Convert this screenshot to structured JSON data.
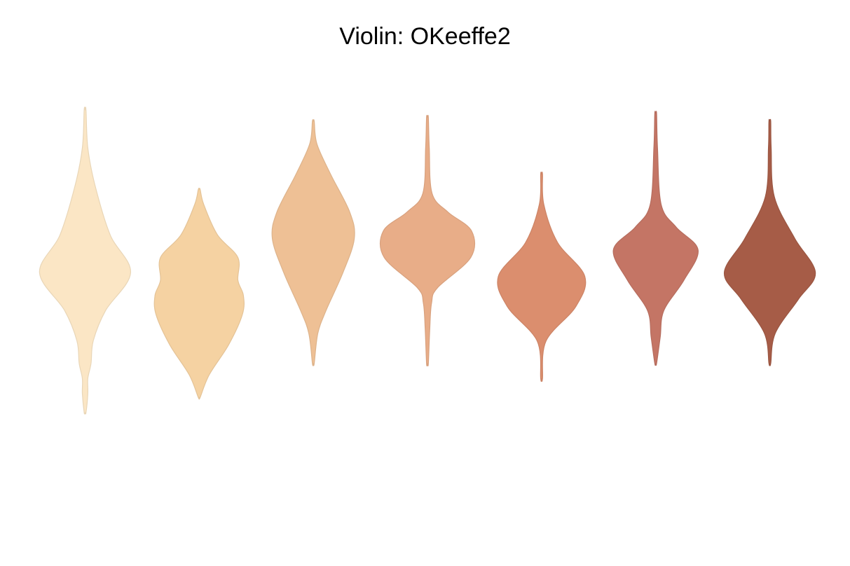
{
  "chart_data": {
    "type": "violin",
    "title": "Violin: OKeeffe2",
    "xlabel": "",
    "ylabel": "",
    "axes_visible": false,
    "grid": false,
    "legend": "none",
    "ylim": [
      0,
      100
    ],
    "series": [
      {
        "color": "#fbe6c5",
        "profile": [
          [
            15,
            0.02
          ],
          [
            20,
            0.06
          ],
          [
            24,
            0.06
          ],
          [
            28,
            0.13
          ],
          [
            34,
            0.18
          ],
          [
            42,
            0.45
          ],
          [
            52,
            1.0
          ],
          [
            62,
            0.55
          ],
          [
            75,
            0.22
          ],
          [
            85,
            0.06
          ],
          [
            95,
            0.02
          ]
        ]
      },
      {
        "color": "#f5d2a2",
        "profile": [
          [
            19,
            0.02
          ],
          [
            25,
            0.22
          ],
          [
            33,
            0.65
          ],
          [
            41,
            0.95
          ],
          [
            46,
            0.97
          ],
          [
            50,
            0.85
          ],
          [
            56,
            0.85
          ],
          [
            62,
            0.4
          ],
          [
            70,
            0.1
          ],
          [
            74,
            0.02
          ]
        ]
      },
      {
        "color": "#eec095",
        "profile": [
          [
            28,
            0.02
          ],
          [
            36,
            0.1
          ],
          [
            42,
            0.28
          ],
          [
            52,
            0.65
          ],
          [
            61,
            0.9
          ],
          [
            68,
            0.8
          ],
          [
            78,
            0.38
          ],
          [
            86,
            0.08
          ],
          [
            92,
            0.02
          ]
        ]
      },
      {
        "color": "#e8ad88",
        "profile": [
          [
            28,
            0.02
          ],
          [
            37,
            0.05
          ],
          [
            44,
            0.09
          ],
          [
            48,
            0.22
          ],
          [
            56,
            0.95
          ],
          [
            63,
            0.97
          ],
          [
            68,
            0.45
          ],
          [
            73,
            0.1
          ],
          [
            85,
            0.04
          ],
          [
            93,
            0.02
          ]
        ]
      },
      {
        "color": "#db8e6e",
        "profile": [
          [
            24,
            0.02
          ],
          [
            34,
            0.1
          ],
          [
            43,
            0.75
          ],
          [
            51,
            0.95
          ],
          [
            60,
            0.35
          ],
          [
            70,
            0.05
          ],
          [
            78,
            0.02
          ]
        ]
      },
      {
        "color": "#c47565",
        "profile": [
          [
            28,
            0.02
          ],
          [
            35,
            0.1
          ],
          [
            42,
            0.18
          ],
          [
            50,
            0.62
          ],
          [
            58,
            0.93
          ],
          [
            64,
            0.45
          ],
          [
            70,
            0.12
          ],
          [
            85,
            0.04
          ],
          [
            94,
            0.02
          ]
        ]
      },
      {
        "color": "#a65c47",
        "profile": [
          [
            28,
            0.02
          ],
          [
            36,
            0.12
          ],
          [
            45,
            0.63
          ],
          [
            52,
            1.0
          ],
          [
            61,
            0.55
          ],
          [
            72,
            0.1
          ],
          [
            85,
            0.03
          ],
          [
            92,
            0.02
          ]
        ]
      }
    ]
  }
}
